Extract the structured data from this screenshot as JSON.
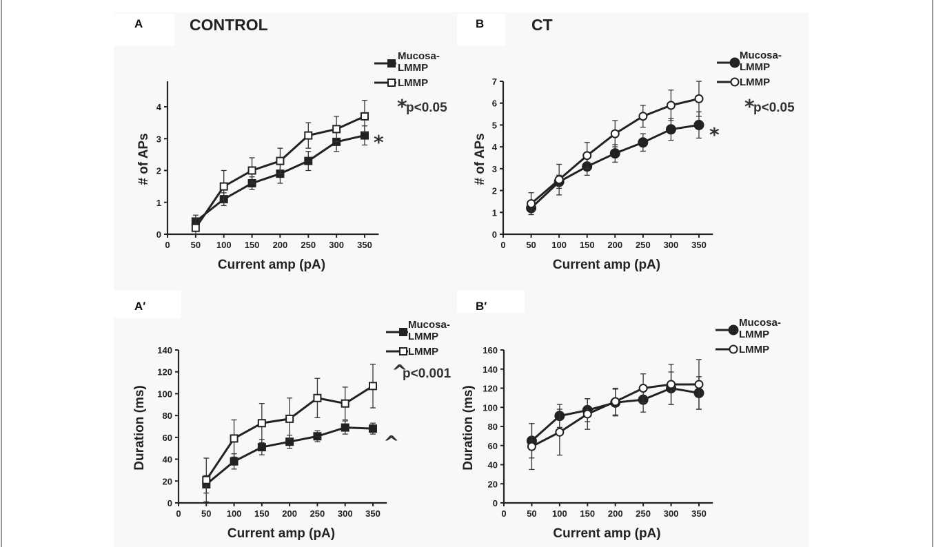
{
  "chart_data": [
    {
      "panel": "A",
      "title": "CONTROL",
      "type": "line",
      "xlabel": "Current amp (pA)",
      "ylabel": "# of APs",
      "x": [
        50,
        100,
        150,
        200,
        250,
        300,
        350
      ],
      "xticks": [
        0,
        50,
        100,
        150,
        200,
        250,
        300,
        350
      ],
      "xlim": [
        0,
        375
      ],
      "yticks": [
        0,
        1,
        2,
        3,
        4
      ],
      "ylim": [
        0,
        4.8
      ],
      "series": [
        {
          "name": "Mucosa-\nLMMP",
          "legend_lines": [
            "Mucosa-",
            "LMMP"
          ],
          "marker": "square-filled",
          "values": [
            0.4,
            1.1,
            1.6,
            1.9,
            2.3,
            2.9,
            3.1
          ],
          "errors": [
            0.2,
            0.2,
            0.2,
            0.3,
            0.3,
            0.3,
            0.3
          ]
        },
        {
          "name": "LMMP",
          "legend_lines": [
            "LMMP"
          ],
          "marker": "square-open",
          "values": [
            0.2,
            1.5,
            2.0,
            2.3,
            3.1,
            3.3,
            3.7
          ],
          "errors": [
            0.3,
            0.5,
            0.4,
            0.4,
            0.4,
            0.4,
            0.5
          ]
        }
      ],
      "significance_note": {
        "symbol": "*",
        "text": "p<0.05"
      },
      "significance_marker": "*"
    },
    {
      "panel": "B",
      "title": "CT",
      "type": "line",
      "xlabel": "Current amp (pA)",
      "ylabel": "# of APs",
      "x": [
        50,
        100,
        150,
        200,
        250,
        300,
        350
      ],
      "xticks": [
        0,
        50,
        100,
        150,
        200,
        250,
        300,
        350
      ],
      "xlim": [
        0,
        375
      ],
      "yticks": [
        0,
        1,
        2,
        3,
        4,
        5,
        6,
        7
      ],
      "ylim": [
        0,
        7
      ],
      "series": [
        {
          "name": "Mucosa-\nLMMP",
          "legend_lines": [
            "Mucosa-",
            "LMMP"
          ],
          "marker": "circle-filled",
          "values": [
            1.2,
            2.4,
            3.1,
            3.7,
            4.2,
            4.8,
            5.0
          ],
          "errors": [
            0.3,
            0.3,
            0.4,
            0.4,
            0.4,
            0.5,
            0.6
          ]
        },
        {
          "name": "LMMP",
          "legend_lines": [
            "LMMP"
          ],
          "marker": "circle-open",
          "values": [
            1.4,
            2.5,
            3.6,
            4.6,
            5.4,
            5.9,
            6.2
          ],
          "errors": [
            0.5,
            0.7,
            0.6,
            0.6,
            0.5,
            0.7,
            0.8
          ]
        }
      ],
      "significance_note": {
        "symbol": "*",
        "text": "p<0.05"
      },
      "significance_marker": "*"
    },
    {
      "panel": "A′",
      "title": "",
      "type": "line",
      "xlabel": "Current amp (pA)",
      "ylabel": "Duration (ms)",
      "x": [
        50,
        100,
        150,
        200,
        250,
        300,
        350
      ],
      "xticks": [
        0,
        50,
        100,
        150,
        200,
        250,
        300,
        350
      ],
      "xlim": [
        0,
        375
      ],
      "yticks": [
        0,
        20,
        40,
        60,
        80,
        100,
        120,
        140
      ],
      "ylim": [
        0,
        140
      ],
      "series": [
        {
          "name": "Mucosa-\nLMMP",
          "legend_lines": [
            "Mucosa-",
            "LMMP"
          ],
          "marker": "square-filled",
          "values": [
            17,
            38,
            51,
            56,
            61,
            69,
            68
          ],
          "errors": [
            8,
            7,
            7,
            6,
            5,
            6,
            5
          ]
        },
        {
          "name": "LMMP",
          "legend_lines": [
            "LMMP"
          ],
          "marker": "square-open",
          "values": [
            21,
            59,
            73,
            77,
            96,
            91,
            107
          ],
          "errors": [
            20,
            17,
            18,
            19,
            18,
            15,
            20
          ]
        }
      ],
      "significance_note": {
        "symbol": "^",
        "text": "p<0.001"
      },
      "significance_marker": "^"
    },
    {
      "panel": "B′",
      "title": "",
      "type": "line",
      "xlabel": "Current amp (pA)",
      "ylabel": "Duration (ms)",
      "x": [
        50,
        100,
        150,
        200,
        250,
        300,
        350
      ],
      "xticks": [
        0,
        50,
        100,
        150,
        200,
        250,
        300,
        350
      ],
      "xlim": [
        0,
        375
      ],
      "yticks": [
        0,
        20,
        40,
        60,
        80,
        100,
        120,
        140,
        160
      ],
      "ylim": [
        0,
        160
      ],
      "series": [
        {
          "name": "Mucosa-\nLMMP",
          "legend_lines": [
            "Mucosa-",
            "LMMP"
          ],
          "marker": "circle-filled",
          "values": [
            65,
            91,
            97,
            105,
            108,
            120,
            115
          ],
          "errors": [
            18,
            12,
            12,
            14,
            13,
            17,
            17
          ]
        },
        {
          "name": "LMMP",
          "legend_lines": [
            "LMMP"
          ],
          "marker": "circle-open",
          "values": [
            59,
            74,
            93,
            106,
            120,
            124,
            124
          ],
          "errors": [
            24,
            24,
            16,
            14,
            15,
            21,
            26
          ]
        }
      ],
      "significance_note": null,
      "significance_marker": null
    }
  ],
  "colors": {
    "line": "#222222",
    "panel_background": "#f8f8f8",
    "frame": "#555555"
  }
}
